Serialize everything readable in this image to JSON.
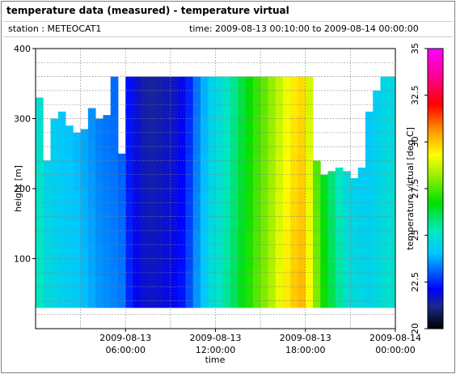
{
  "header": {
    "title": "temperature data (measured) - temperature virtual",
    "station_label": "station : METEOCAT1",
    "time_label": "time: 2009-08-13 00:10:00 to 2009-08-14 00:00:00"
  },
  "chart_data": {
    "type": "heatmap",
    "xlabel": "time",
    "ylabel": "height [m]",
    "colorbar_label": "temperature virtual [deg C]",
    "ylim": [
      0,
      400
    ],
    "xlim_hours": [
      0,
      24
    ],
    "yticks": [
      "100",
      "200",
      "300",
      "400"
    ],
    "xticks": [
      {
        "line1": "2009-08-13",
        "line2": "06:00:00"
      },
      {
        "line1": "2009-08-13",
        "line2": "12:00:00"
      },
      {
        "line1": "2009-08-13",
        "line2": "18:00:00"
      },
      {
        "line1": "2009-08-14",
        "line2": "00:00:00"
      }
    ],
    "clim": [
      20,
      35
    ],
    "cticks": [
      "20",
      "22.5",
      "25",
      "27.5",
      "30",
      "32.5",
      "35"
    ],
    "grid": true,
    "height_min_m": 30,
    "profiles": {
      "time_h": [
        0.25,
        0.75,
        1.25,
        1.75,
        2.25,
        2.75,
        3.25,
        3.75,
        4.25,
        4.75,
        5.25,
        5.75,
        6.25,
        6.75,
        7.25,
        7.75,
        8.25,
        8.75,
        9.25,
        9.75,
        10.25,
        10.75,
        11.25,
        11.75,
        12.25,
        12.75,
        13.25,
        13.75,
        14.25,
        14.75,
        15.25,
        15.75,
        16.25,
        16.75,
        17.25,
        17.75,
        18.25,
        18.75,
        19.25,
        19.75,
        20.25,
        20.75,
        21.25,
        21.75,
        22.25,
        22.75,
        23.25,
        23.75
      ],
      "top_m": [
        330,
        240,
        300,
        310,
        290,
        280,
        285,
        315,
        300,
        305,
        360,
        250,
        360,
        360,
        360,
        360,
        360,
        360,
        360,
        360,
        360,
        360,
        360,
        360,
        360,
        360,
        360,
        360,
        360,
        360,
        360,
        360,
        360,
        360,
        360,
        360,
        360,
        240,
        220,
        225,
        230,
        225,
        215,
        230,
        310,
        340,
        360,
        360
      ],
      "temp_c": [
        25.3,
        24.8,
        24.6,
        24.4,
        24.3,
        24.2,
        24.0,
        23.8,
        23.6,
        23.5,
        23.4,
        23.3,
        22.5,
        22.0,
        21.8,
        21.7,
        21.8,
        21.9,
        22.0,
        22.3,
        22.9,
        23.6,
        24.2,
        24.8,
        25.2,
        25.6,
        26.1,
        26.6,
        27.1,
        27.6,
        28.0,
        28.5,
        29.1,
        29.6,
        30.0,
        30.2,
        29.3,
        28.0,
        26.9,
        26.2,
        25.6,
        25.0,
        24.8,
        24.6,
        24.5,
        24.7,
        24.9,
        25.0
      ],
      "temp_top_c": [
        24.9,
        24.4,
        24.2,
        24.1,
        24.0,
        23.9,
        23.7,
        23.5,
        23.3,
        23.2,
        23.1,
        23.0,
        22.2,
        21.7,
        21.4,
        21.3,
        21.4,
        21.5,
        21.6,
        21.9,
        22.4,
        23.2,
        23.8,
        24.3,
        24.7,
        25.1,
        25.6,
        26.2,
        26.7,
        27.2,
        27.6,
        28.1,
        28.6,
        29.1,
        29.5,
        29.7,
        28.8,
        27.5,
        26.5,
        25.8,
        25.2,
        24.6,
        24.4,
        24.2,
        24.1,
        24.3,
        24.5,
        24.6
      ]
    }
  }
}
